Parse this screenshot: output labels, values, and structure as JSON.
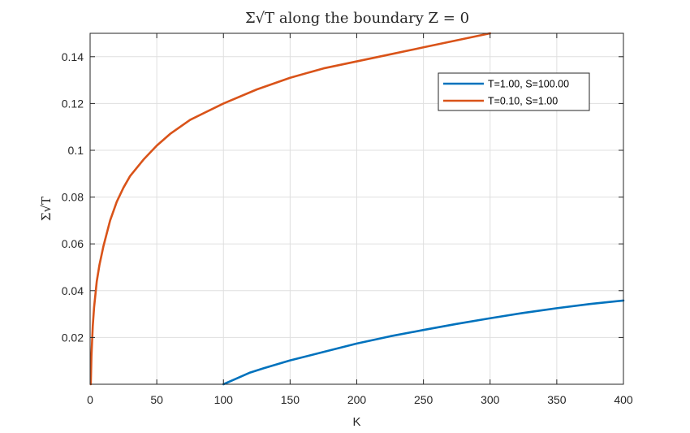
{
  "chart_data": {
    "type": "line",
    "title": "Σ√T along the boundary Z = 0",
    "xlabel": "K",
    "ylabel": "Σ√T",
    "xlim": [
      0,
      400
    ],
    "ylim": [
      0,
      0.15
    ],
    "xticks": [
      0,
      50,
      100,
      150,
      200,
      250,
      300,
      350,
      400
    ],
    "yticks": [
      0.02,
      0.04,
      0.06,
      0.08,
      0.1,
      0.12,
      0.14
    ],
    "xtick_labels": [
      "0",
      "50",
      "100",
      "150",
      "200",
      "250",
      "300",
      "350",
      "400"
    ],
    "ytick_labels": [
      "0.02",
      "0.04",
      "0.06",
      "0.08",
      "0.1",
      "0.12",
      "0.14"
    ],
    "grid": true,
    "legend_position": "top-right",
    "series": [
      {
        "name": "T=1.00, S=100.00",
        "color": "#0072BD",
        "x": [
          100,
          110,
          120,
          130,
          150,
          175,
          200,
          225,
          250,
          275,
          300,
          325,
          350,
          375,
          400
        ],
        "y": [
          0.0,
          0.0025,
          0.005,
          0.0068,
          0.0102,
          0.0138,
          0.0174,
          0.0205,
          0.0232,
          0.0258,
          0.0282,
          0.0305,
          0.0325,
          0.0343,
          0.0358
        ]
      },
      {
        "name": "T=0.10, S=1.00",
        "color": "#D95319",
        "x": [
          0.5,
          1,
          2,
          3,
          5,
          7,
          10,
          15,
          20,
          25,
          30,
          40,
          50,
          60,
          75,
          100,
          125,
          150,
          175,
          200,
          225,
          250,
          275,
          300
        ],
        "y": [
          0.0,
          0.012,
          0.025,
          0.033,
          0.044,
          0.051,
          0.059,
          0.07,
          0.078,
          0.084,
          0.089,
          0.096,
          0.102,
          0.107,
          0.113,
          0.12,
          0.126,
          0.131,
          0.135,
          0.138,
          0.141,
          0.144,
          0.147,
          0.15
        ]
      }
    ]
  }
}
